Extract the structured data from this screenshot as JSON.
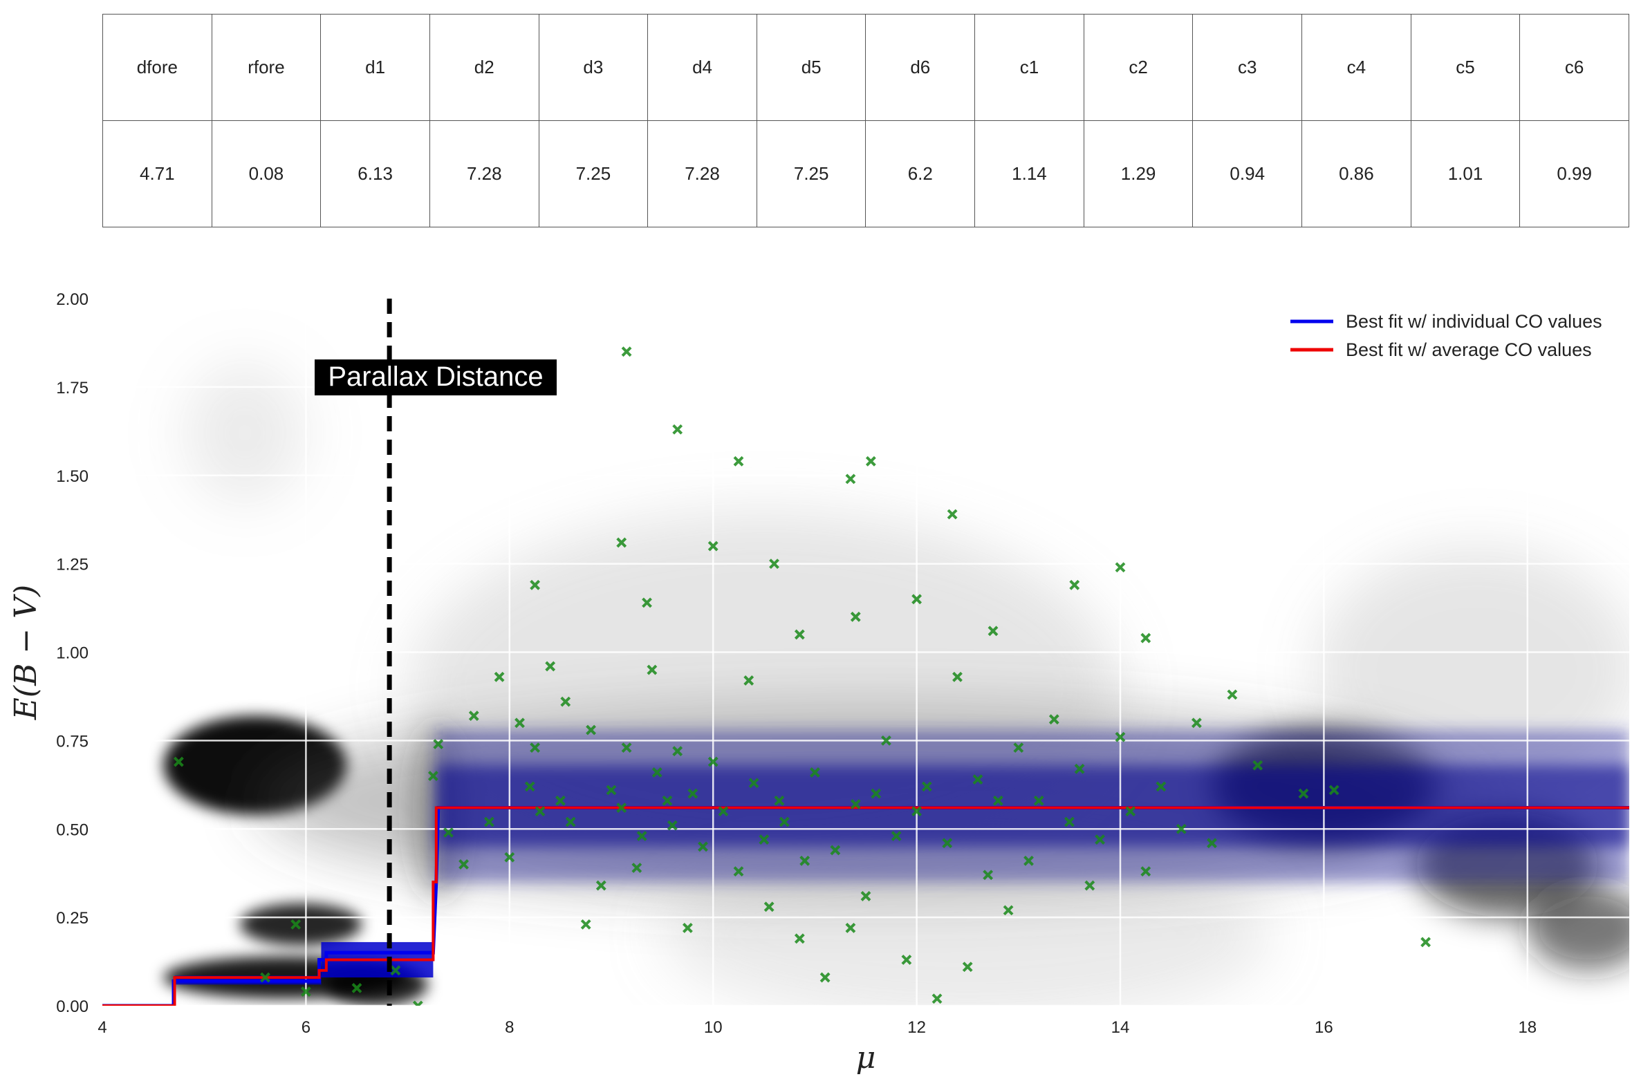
{
  "table": {
    "headers": [
      "dfore",
      "rfore",
      "d1",
      "d2",
      "d3",
      "d4",
      "d5",
      "d6",
      "c1",
      "c2",
      "c3",
      "c4",
      "c5",
      "c6"
    ],
    "values": [
      "4.71",
      "0.08",
      "6.13",
      "7.28",
      "7.25",
      "7.28",
      "7.25",
      "6.2",
      "1.14",
      "1.29",
      "0.94",
      "0.86",
      "1.01",
      "0.99"
    ]
  },
  "chart_data": {
    "type": "line",
    "xlabel": "μ",
    "ylabel": "E(B − V)",
    "xlim": [
      4,
      19
    ],
    "ylim": [
      0,
      2
    ],
    "xticks": [
      "4",
      "6",
      "8",
      "10",
      "12",
      "14",
      "16",
      "18"
    ],
    "yticks": [
      "0.00",
      "0.25",
      "0.50",
      "0.75",
      "1.00",
      "1.25",
      "1.50",
      "1.75",
      "2.00"
    ],
    "grid": true,
    "legend_position": "top-right",
    "annotation": {
      "text": "Parallax Distance",
      "x": 6.82
    },
    "series": [
      {
        "name": "Best fit w/ individual CO values",
        "color": "#0000ee",
        "x": [
          4,
          4.7,
          4.7,
          6.13,
          6.13,
          6.2,
          6.2,
          7.25,
          7.28,
          7.3,
          19
        ],
        "y": [
          0,
          0,
          0.07,
          0.07,
          0.13,
          0.13,
          0.15,
          0.15,
          0.35,
          0.56,
          0.56
        ]
      },
      {
        "name": "Best fit w/ average CO values",
        "color": "#ee0000",
        "x": [
          4,
          4.71,
          4.71,
          6.13,
          6.13,
          6.2,
          6.2,
          7.25,
          7.25,
          7.28,
          7.28,
          19
        ],
        "y": [
          0,
          0,
          0.08,
          0.08,
          0.1,
          0.1,
          0.13,
          0.13,
          0.35,
          0.35,
          0.56,
          0.56
        ]
      },
      {
        "name": "",
        "type": "scatter",
        "color": "#1a8a1a",
        "x": [
          4.75,
          5.6,
          5.9,
          6.0,
          6.5,
          6.88,
          7.1,
          7.25,
          7.3,
          7.4,
          7.55,
          7.65,
          7.8,
          7.9,
          8.0,
          8.1,
          8.2,
          8.25,
          8.3,
          8.4,
          8.5,
          8.55,
          8.6,
          8.75,
          8.8,
          8.9,
          9.0,
          9.1,
          9.15,
          9.25,
          9.3,
          9.4,
          9.45,
          9.55,
          9.6,
          9.65,
          9.75,
          9.8,
          9.9,
          10.0,
          10.1,
          10.25,
          10.35,
          10.4,
          10.5,
          10.55,
          10.65,
          10.7,
          10.85,
          10.9,
          11.0,
          11.1,
          11.2,
          11.35,
          11.4,
          11.5,
          11.6,
          11.7,
          11.8,
          11.9,
          12.0,
          12.1,
          12.2,
          12.3,
          12.4,
          12.5,
          12.6,
          12.7,
          12.8,
          12.9,
          13.0,
          13.1,
          13.2,
          13.35,
          13.5,
          13.6,
          13.7,
          13.8,
          14.0,
          14.1,
          14.25,
          14.4,
          14.6,
          14.75,
          14.9,
          15.1,
          15.35,
          15.8,
          16.1,
          17.0,
          9.15,
          9.65,
          10.25,
          11.35,
          11.55,
          12.35,
          10.6,
          9.1,
          10.0,
          8.25,
          14.0,
          13.55,
          12.0,
          9.35,
          11.4,
          12.75,
          14.25,
          10.85
        ],
        "y": [
          0.69,
          0.08,
          0.23,
          0.04,
          0.05,
          0.1,
          0.0,
          0.65,
          0.74,
          0.49,
          0.4,
          0.82,
          0.52,
          0.93,
          0.42,
          0.8,
          0.62,
          0.73,
          0.55,
          0.96,
          0.58,
          0.86,
          0.52,
          0.23,
          0.78,
          0.34,
          0.61,
          0.56,
          0.73,
          0.39,
          0.48,
          0.95,
          0.66,
          0.58,
          0.51,
          0.72,
          0.22,
          0.6,
          0.45,
          0.69,
          0.55,
          0.38,
          0.92,
          0.63,
          0.47,
          0.28,
          0.58,
          0.52,
          0.19,
          0.41,
          0.66,
          0.08,
          0.44,
          0.22,
          0.57,
          0.31,
          0.6,
          0.75,
          0.48,
          0.13,
          0.55,
          0.62,
          0.02,
          0.46,
          0.93,
          0.11,
          0.64,
          0.37,
          0.58,
          0.27,
          0.73,
          0.41,
          0.58,
          0.81,
          0.52,
          0.67,
          0.34,
          0.47,
          0.76,
          0.55,
          0.38,
          0.62,
          0.5,
          0.8,
          0.46,
          0.88,
          0.68,
          0.6,
          0.61,
          0.18,
          1.85,
          1.63,
          1.54,
          1.49,
          1.54,
          1.39,
          1.25,
          1.31,
          1.3,
          1.19,
          1.24,
          1.19,
          1.15,
          1.14,
          1.1,
          1.06,
          1.04,
          1.05
        ]
      }
    ]
  }
}
